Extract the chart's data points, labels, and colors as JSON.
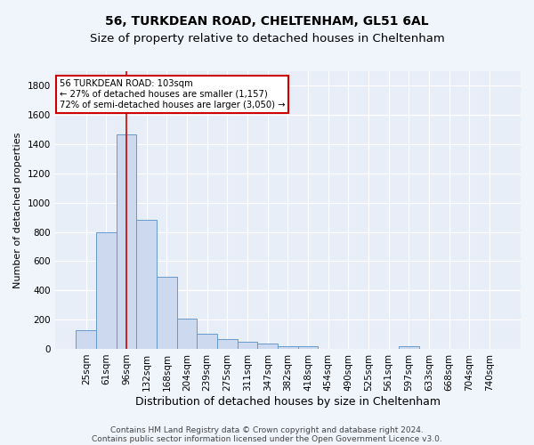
{
  "title1": "56, TURKDEAN ROAD, CHELTENHAM, GL51 6AL",
  "title2": "Size of property relative to detached houses in Cheltenham",
  "xlabel": "Distribution of detached houses by size in Cheltenham",
  "ylabel": "Number of detached properties",
  "footer1": "Contains HM Land Registry data © Crown copyright and database right 2024.",
  "footer2": "Contains public sector information licensed under the Open Government Licence v3.0.",
  "bar_labels": [
    "25sqm",
    "61sqm",
    "96sqm",
    "132sqm",
    "168sqm",
    "204sqm",
    "239sqm",
    "275sqm",
    "311sqm",
    "347sqm",
    "382sqm",
    "418sqm",
    "454sqm",
    "490sqm",
    "525sqm",
    "561sqm",
    "597sqm",
    "633sqm",
    "668sqm",
    "704sqm",
    "740sqm"
  ],
  "bar_values": [
    130,
    800,
    1470,
    880,
    495,
    205,
    105,
    65,
    50,
    35,
    20,
    15,
    0,
    0,
    0,
    0,
    15,
    0,
    0,
    0,
    0
  ],
  "bar_color": "#ccd9ee",
  "bar_edge_color": "#6699cc",
  "bar_width": 1.0,
  "vline_x": 2,
  "vline_color": "#cc0000",
  "annotation_text": "56 TURKDEAN ROAD: 103sqm\n← 27% of detached houses are smaller (1,157)\n72% of semi-detached houses are larger (3,050) →",
  "annotation_box_facecolor": "white",
  "annotation_box_edgecolor": "#cc0000",
  "ylim": [
    0,
    1900
  ],
  "yticks": [
    0,
    200,
    400,
    600,
    800,
    1000,
    1200,
    1400,
    1600,
    1800
  ],
  "bg_color": "#f0f4fb",
  "plot_bg_color": "#e8eef8",
  "grid_color": "white",
  "title1_fontsize": 10,
  "title2_fontsize": 9.5,
  "xlabel_fontsize": 9,
  "ylabel_fontsize": 8,
  "tick_fontsize": 7.5,
  "footer_fontsize": 6.5
}
